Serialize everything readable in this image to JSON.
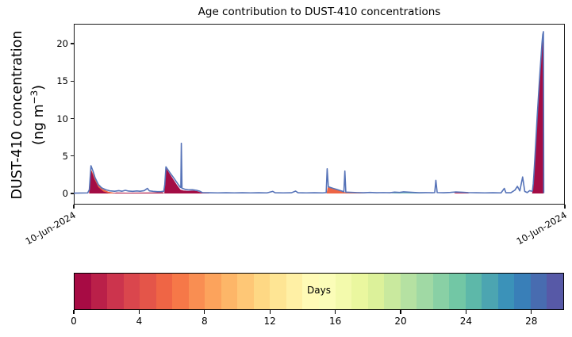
{
  "title": "Age contribution to DUST-410 concentrations",
  "y_axis": {
    "label_line1": "DUST-410 concentration",
    "unit_pre": "(ng m",
    "unit_sup": "−3",
    "unit_post": ")",
    "ticks": [
      0,
      5,
      10,
      15,
      20
    ]
  },
  "x_axis": {
    "tick_labels": [
      "10-Jun-2024",
      "10-Jun-2024"
    ],
    "tick_positions_days": [
      0,
      30
    ]
  },
  "chart_data": {
    "type": "area",
    "title": "Age contribution to DUST-410 concentrations",
    "ylabel": "DUST-410 concentration (ng m−3)",
    "y_unit": "ng m−3",
    "x_unit": "days from axis start (both axis ticks read 10-Jun-2024)",
    "xlim": [
      0,
      30
    ],
    "ylim": [
      -1.5,
      22.6
    ],
    "grid": false,
    "total_line": {
      "name": "total concentration",
      "color": "#5673B8",
      "width": 1.6,
      "points": [
        [
          0,
          0.05
        ],
        [
          0.85,
          0.08
        ],
        [
          0.95,
          0.5
        ],
        [
          1.05,
          3.7
        ],
        [
          1.18,
          2.95
        ],
        [
          1.3,
          2.1
        ],
        [
          1.5,
          1.2
        ],
        [
          1.7,
          0.75
        ],
        [
          1.95,
          0.5
        ],
        [
          2.2,
          0.35
        ],
        [
          2.5,
          0.3
        ],
        [
          2.75,
          0.38
        ],
        [
          2.95,
          0.3
        ],
        [
          3.15,
          0.42
        ],
        [
          3.35,
          0.32
        ],
        [
          3.6,
          0.28
        ],
        [
          3.85,
          0.34
        ],
        [
          4.05,
          0.3
        ],
        [
          4.3,
          0.38
        ],
        [
          4.5,
          0.68
        ],
        [
          4.62,
          0.35
        ],
        [
          4.85,
          0.28
        ],
        [
          5.1,
          0.24
        ],
        [
          5.35,
          0.26
        ],
        [
          5.5,
          0.3
        ],
        [
          5.56,
          1.2
        ],
        [
          5.63,
          3.55
        ],
        [
          5.85,
          2.85
        ],
        [
          6.1,
          2.1
        ],
        [
          6.35,
          1.3
        ],
        [
          6.5,
          0.85
        ],
        [
          6.54,
          0.8
        ],
        [
          6.57,
          6.7
        ],
        [
          6.61,
          0.7
        ],
        [
          6.8,
          0.55
        ],
        [
          7.0,
          0.48
        ],
        [
          7.25,
          0.5
        ],
        [
          7.5,
          0.42
        ],
        [
          7.7,
          0.3
        ],
        [
          7.85,
          0.12
        ],
        [
          8.3,
          0.1
        ],
        [
          8.8,
          0.08
        ],
        [
          9.3,
          0.1
        ],
        [
          9.8,
          0.08
        ],
        [
          10.3,
          0.1
        ],
        [
          10.8,
          0.08
        ],
        [
          11.3,
          0.1
        ],
        [
          11.8,
          0.08
        ],
        [
          12.15,
          0.28
        ],
        [
          12.3,
          0.1
        ],
        [
          12.8,
          0.08
        ],
        [
          13.3,
          0.1
        ],
        [
          13.55,
          0.32
        ],
        [
          13.7,
          0.1
        ],
        [
          14.2,
          0.08
        ],
        [
          14.7,
          0.1
        ],
        [
          15.2,
          0.08
        ],
        [
          15.42,
          0.12
        ],
        [
          15.48,
          3.3
        ],
        [
          15.55,
          0.9
        ],
        [
          15.8,
          0.72
        ],
        [
          16.1,
          0.52
        ],
        [
          16.4,
          0.3
        ],
        [
          16.5,
          0.22
        ],
        [
          16.56,
          3.0
        ],
        [
          16.62,
          0.18
        ],
        [
          16.9,
          0.15
        ],
        [
          17.3,
          0.12
        ],
        [
          17.7,
          0.1
        ],
        [
          18.1,
          0.14
        ],
        [
          18.5,
          0.1
        ],
        [
          18.9,
          0.12
        ],
        [
          19.3,
          0.1
        ],
        [
          19.6,
          0.18
        ],
        [
          19.9,
          0.14
        ],
        [
          20.15,
          0.22
        ],
        [
          20.45,
          0.18
        ],
        [
          20.75,
          0.14
        ],
        [
          21.1,
          0.1
        ],
        [
          21.5,
          0.12
        ],
        [
          21.9,
          0.1
        ],
        [
          22.05,
          0.12
        ],
        [
          22.12,
          1.75
        ],
        [
          22.2,
          0.12
        ],
        [
          22.6,
          0.1
        ],
        [
          23.0,
          0.14
        ],
        [
          23.3,
          0.2
        ],
        [
          23.7,
          0.17
        ],
        [
          24.1,
          0.12
        ],
        [
          24.6,
          0.1
        ],
        [
          25.1,
          0.08
        ],
        [
          25.6,
          0.1
        ],
        [
          26.1,
          0.08
        ],
        [
          26.3,
          0.68
        ],
        [
          26.4,
          0.1
        ],
        [
          26.7,
          0.1
        ],
        [
          26.95,
          0.45
        ],
        [
          27.1,
          0.95
        ],
        [
          27.25,
          0.35
        ],
        [
          27.42,
          2.2
        ],
        [
          27.55,
          0.28
        ],
        [
          27.7,
          0.12
        ],
        [
          27.85,
          0.38
        ],
        [
          27.95,
          0.3
        ],
        [
          28.02,
          0.35
        ],
        [
          28.07,
          1.3
        ],
        [
          28.11,
          2.6
        ],
        [
          28.16,
          4.4
        ],
        [
          28.21,
          6.3
        ],
        [
          28.26,
          8.3
        ],
        [
          28.31,
          10.3
        ],
        [
          28.37,
          12.4
        ],
        [
          28.43,
          14.5
        ],
        [
          28.49,
          16.5
        ],
        [
          28.55,
          18.4
        ],
        [
          28.6,
          20.0
        ],
        [
          28.65,
          21.2
        ],
        [
          28.69,
          21.6
        ],
        [
          28.71,
          0.05
        ]
      ]
    },
    "age_fills": [
      {
        "age_days": 5,
        "color": "#ED6545",
        "points": [
          [
            0.93,
            0
          ],
          [
            1.03,
            3.35
          ],
          [
            1.2,
            2.55
          ],
          [
            1.45,
            1.35
          ],
          [
            1.75,
            0.6
          ],
          [
            2.1,
            0.25
          ],
          [
            2.5,
            0.08
          ],
          [
            2.8,
            0
          ]
        ]
      },
      {
        "age_days": 0,
        "color": "#A30D45",
        "points": [
          [
            0.95,
            0
          ],
          [
            1.04,
            3.2
          ],
          [
            1.25,
            1.95
          ],
          [
            1.5,
            0.85
          ],
          [
            1.8,
            0.28
          ],
          [
            2.1,
            0.06
          ],
          [
            2.25,
            0
          ]
        ]
      },
      {
        "age_days": 1,
        "color": "#B01A47",
        "points": [
          [
            2.35,
            0
          ],
          [
            2.6,
            0.13
          ],
          [
            3.2,
            0.11
          ],
          [
            4.0,
            0.12
          ],
          [
            4.8,
            0.13
          ],
          [
            5.45,
            0.16
          ],
          [
            5.52,
            0
          ]
        ]
      },
      {
        "age_days": 0,
        "color": "#A30D45",
        "points": [
          [
            5.53,
            0
          ],
          [
            5.63,
            3.4
          ],
          [
            6.3,
            1.15
          ],
          [
            6.52,
            0.5
          ],
          [
            6.7,
            0.4
          ],
          [
            7.0,
            0.35
          ],
          [
            7.3,
            0.38
          ],
          [
            7.55,
            0.3
          ],
          [
            7.78,
            0.12
          ],
          [
            8.2,
            0.1
          ],
          [
            8.3,
            0
          ]
        ]
      },
      {
        "age_days": 6,
        "color": "#ED6545",
        "points": [
          [
            15.44,
            0
          ],
          [
            15.52,
            0.85
          ],
          [
            16.0,
            0.55
          ],
          [
            16.5,
            0.18
          ],
          [
            17.0,
            0.1
          ],
          [
            17.5,
            0.05
          ],
          [
            17.9,
            0
          ]
        ]
      },
      {
        "age_days": 22,
        "color": "#79BFBB",
        "points": [
          [
            19.4,
            0
          ],
          [
            19.6,
            0.1
          ],
          [
            19.95,
            0.1
          ],
          [
            20.2,
            0.16
          ],
          [
            20.5,
            0.12
          ],
          [
            20.9,
            0.08
          ],
          [
            21.3,
            0.04
          ],
          [
            21.5,
            0
          ]
        ]
      },
      {
        "age_days": 1,
        "color": "#C22A52",
        "points": [
          [
            23.22,
            0
          ],
          [
            23.32,
            0.12
          ],
          [
            23.65,
            0.14
          ],
          [
            24.0,
            0.1
          ],
          [
            24.18,
            0
          ]
        ]
      },
      {
        "age_days": 0,
        "color": "#A30D45",
        "points": [
          [
            28.0,
            0
          ],
          [
            28.07,
            1.2
          ],
          [
            28.11,
            2.5
          ],
          [
            28.16,
            4.3
          ],
          [
            28.21,
            6.2
          ],
          [
            28.26,
            8.2
          ],
          [
            28.31,
            10.2
          ],
          [
            28.37,
            12.3
          ],
          [
            28.43,
            14.4
          ],
          [
            28.49,
            16.4
          ],
          [
            28.55,
            18.3
          ],
          [
            28.6,
            19.9
          ],
          [
            28.65,
            21.1
          ],
          [
            28.69,
            21.5
          ],
          [
            28.7,
            0
          ]
        ]
      }
    ]
  },
  "colorbar": {
    "label": "Days",
    "range": [
      0,
      30
    ],
    "n_segments": 30,
    "tick_values": [
      0,
      4,
      8,
      12,
      16,
      20,
      24,
      28
    ],
    "tick_labels": [
      "0",
      "4",
      "8",
      "12",
      "16",
      "20",
      "24",
      "28"
    ],
    "colormap_name": "Spectral",
    "colors": [
      "#A70B44",
      "#BA2049",
      "#CC344D",
      "#DA464D",
      "#E45549",
      "#EF6545",
      "#F67848",
      "#F98E52",
      "#FCA35C",
      "#FDB668",
      "#FEC776",
      "#FED884",
      "#FEE594",
      "#FFF0A5",
      "#FFFAB6",
      "#FBFDB8",
      "#F3FAAC",
      "#EAF79F",
      "#DCF19A",
      "#C9E99E",
      "#B5E1A2",
      "#A0D9A4",
      "#89D0A5",
      "#72C7A5",
      "#5DB8A9",
      "#4CA5B1",
      "#3B92B9",
      "#397FB8",
      "#486CB0",
      "#5759A7"
    ]
  }
}
